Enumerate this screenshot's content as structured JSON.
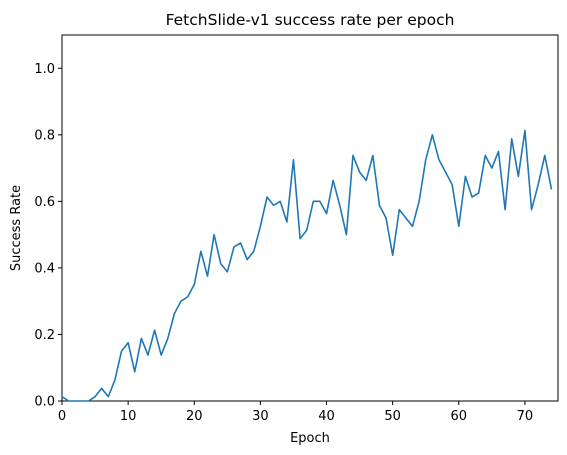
{
  "chart_data": {
    "type": "line",
    "title": "FetchSlide-v1 success rate per epoch",
    "xlabel": "Epoch",
    "ylabel": "Success Rate",
    "xlim": [
      0,
      75
    ],
    "ylim": [
      0,
      1.1
    ],
    "xticks": [
      0,
      10,
      20,
      30,
      40,
      50,
      60,
      70
    ],
    "yticks": [
      0.0,
      0.2,
      0.4,
      0.6,
      0.8,
      1.0
    ],
    "xtick_labels": [
      "0",
      "10",
      "20",
      "30",
      "40",
      "50",
      "60",
      "70"
    ],
    "ytick_labels": [
      "0.0",
      "0.2",
      "0.4",
      "0.6",
      "0.8",
      "1.0"
    ],
    "grid": false,
    "series": [
      {
        "color": "#1f77b4",
        "x": [
          0,
          1,
          2,
          3,
          4,
          5,
          6,
          7,
          8,
          9,
          10,
          11,
          12,
          13,
          14,
          15,
          16,
          17,
          18,
          19,
          20,
          21,
          22,
          23,
          24,
          25,
          26,
          27,
          28,
          29,
          30,
          31,
          32,
          33,
          34,
          35,
          36,
          37,
          38,
          39,
          40,
          41,
          42,
          43,
          44,
          45,
          46,
          47,
          48,
          49,
          50,
          51,
          52,
          53,
          54,
          55,
          56,
          57,
          58,
          59,
          60,
          61,
          62,
          63,
          64,
          65,
          66,
          67,
          68,
          69,
          70,
          71,
          72,
          73,
          74
        ],
        "y": [
          0.013,
          0.0,
          0.0,
          0.0,
          0.0,
          0.013,
          0.038,
          0.013,
          0.063,
          0.15,
          0.175,
          0.088,
          0.188,
          0.138,
          0.213,
          0.138,
          0.188,
          0.263,
          0.3,
          0.313,
          0.35,
          0.45,
          0.375,
          0.5,
          0.413,
          0.388,
          0.463,
          0.475,
          0.425,
          0.45,
          0.525,
          0.613,
          0.588,
          0.6,
          0.538,
          0.725,
          0.488,
          0.513,
          0.6,
          0.6,
          0.563,
          0.663,
          0.588,
          0.5,
          0.738,
          0.688,
          0.663,
          0.738,
          0.588,
          0.55,
          0.438,
          0.575,
          0.55,
          0.525,
          0.6,
          0.725,
          0.8,
          0.725,
          0.688,
          0.65,
          0.525,
          0.675,
          0.613,
          0.625,
          0.738,
          0.7,
          0.75,
          0.575,
          0.788,
          0.675,
          0.813,
          0.575,
          0.65,
          0.738,
          0.638
        ]
      }
    ]
  }
}
